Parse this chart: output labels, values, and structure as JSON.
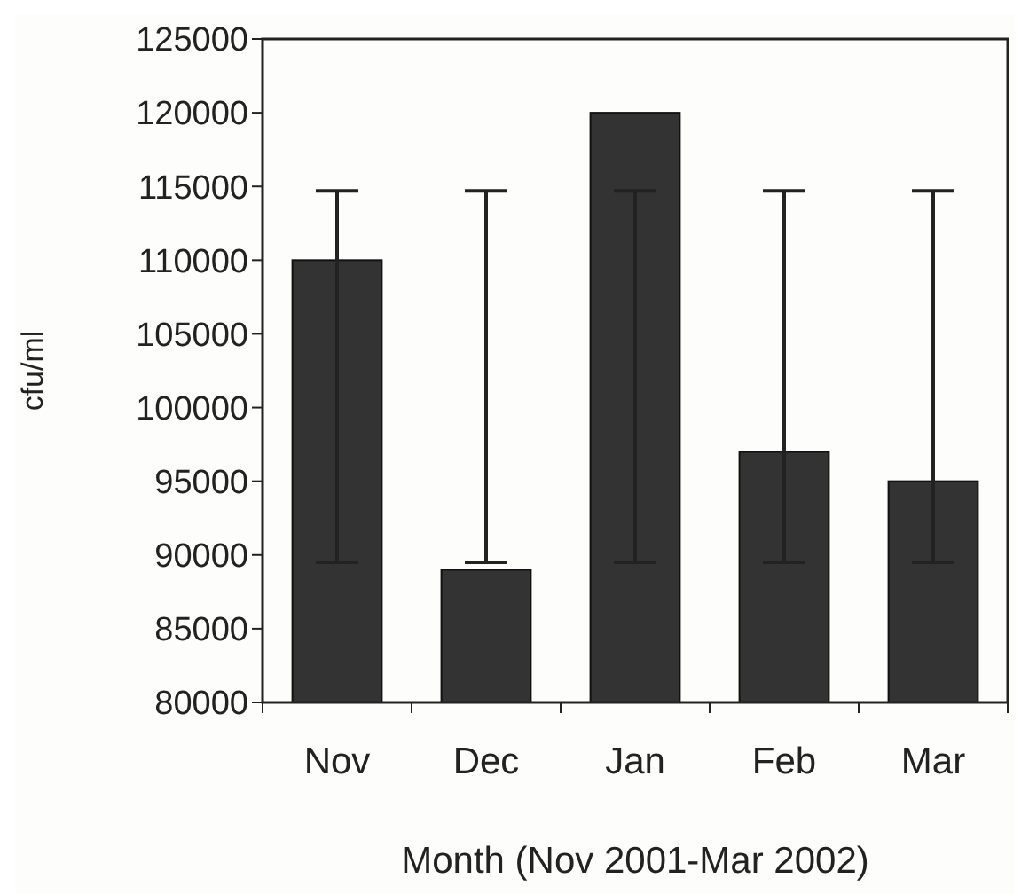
{
  "chart_data": {
    "type": "bar",
    "xlabel": "Month (Nov 2001-Mar 2002)",
    "ylabel": "cfu/ml",
    "categories": [
      "Nov",
      "Dec",
      "Jan",
      "Feb",
      "Mar"
    ],
    "values": [
      110000,
      89000,
      120000,
      97000,
      95000
    ],
    "errors": [
      [
        89500,
        114700
      ],
      [
        89500,
        114700
      ],
      [
        89500,
        114700
      ],
      [
        89500,
        114700
      ],
      [
        89500,
        114700
      ]
    ],
    "color": "#333333",
    "ylim": [
      80000,
      125000
    ],
    "yticks": [
      80000,
      85000,
      90000,
      95000,
      100000,
      105000,
      110000,
      115000,
      120000,
      125000
    ],
    "grid": false
  }
}
